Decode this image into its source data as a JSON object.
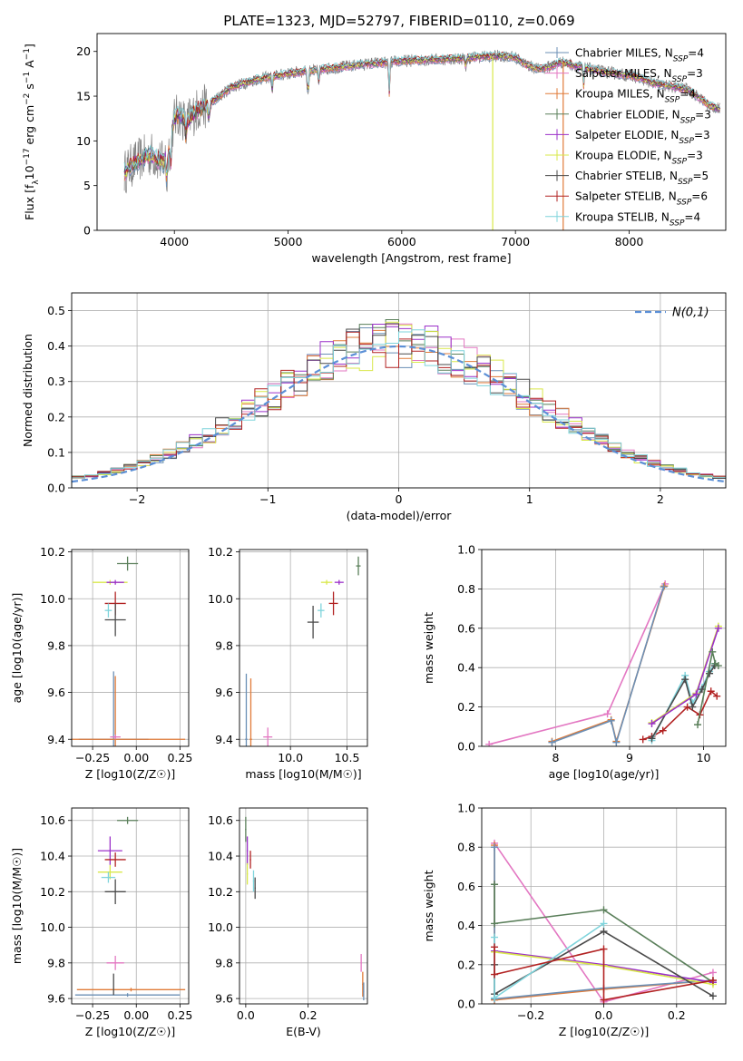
{
  "figure_title": "PLATE=1323, MJD=52797, FIBERID=0110, z=0.069",
  "colors": {
    "chabrier_miles": "#6b8fb5",
    "salpeter_miles": "#e377c2",
    "kroupa_miles": "#e07b39",
    "chabrier_elodie": "#5a7f5a",
    "salpeter_elodie": "#9b30c9",
    "kroupa_elodie": "#d9e84a",
    "chabrier_stelib": "#4a4a4a",
    "salpeter_stelib": "#b22222",
    "kroupa_stelib": "#7fd4dc",
    "data": "#808080",
    "normal_curve": "#5b8fd6"
  },
  "chart_data": [
    {
      "id": "spectrum",
      "type": "line",
      "xlabel": "wavelength [Angstrom, rest frame]",
      "ylabel": "Flux [f_λ10^-17 erg cm^-2 s^-1 A^-1]",
      "xlim": [
        3320,
        8850
      ],
      "ylim": [
        0,
        22
      ],
      "xticks": [
        4000,
        5000,
        6000,
        7000,
        8000
      ],
      "yticks": [
        0,
        5,
        10,
        15,
        20
      ],
      "grid": false,
      "legend_position": "right",
      "legend": [
        {
          "base": "Chabrier MILES, N",
          "sub": "SSP",
          "tail": "=4",
          "color_key": "chabrier_miles"
        },
        {
          "base": "Salpeter MILES, N",
          "sub": "SSP",
          "tail": "=3",
          "color_key": "salpeter_miles"
        },
        {
          "base": "Kroupa MILES, N",
          "sub": "SSP",
          "tail": "=4",
          "color_key": "kroupa_miles"
        },
        {
          "base": "Chabrier ELODIE, N",
          "sub": "SSP",
          "tail": "=3",
          "color_key": "chabrier_elodie"
        },
        {
          "base": "Salpeter ELODIE, N",
          "sub": "SSP",
          "tail": "=3",
          "color_key": "salpeter_elodie"
        },
        {
          "base": "Kroupa ELODIE, N",
          "sub": "SSP",
          "tail": "=3",
          "color_key": "kroupa_elodie"
        },
        {
          "base": "Chabrier STELIB, N",
          "sub": "SSP",
          "tail": "=5",
          "color_key": "chabrier_stelib"
        },
        {
          "base": "Salpeter STELIB, N",
          "sub": "SSP",
          "tail": "=6",
          "color_key": "salpeter_stelib"
        },
        {
          "base": "Kroupa STELIB, N",
          "sub": "SSP",
          "tail": "=4",
          "color_key": "kroupa_stelib"
        }
      ],
      "model_continuum": {
        "x": [
          3560,
          3600,
          3700,
          3800,
          3850,
          3900,
          3950,
          4000,
          4050,
          4100,
          4200,
          4300,
          4400,
          4500,
          4700,
          4900,
          5100,
          5300,
          5500,
          5700,
          5900,
          6100,
          6300,
          6500,
          6700,
          6900,
          7000,
          7100,
          7200,
          7300,
          7400,
          7500,
          7600,
          7700,
          7800,
          7900,
          8000,
          8100,
          8200,
          8300,
          8400,
          8500,
          8600,
          8700,
          8800
        ],
        "y": [
          6.5,
          7.0,
          8.0,
          8.5,
          8.0,
          7.5,
          9.0,
          12.5,
          13.0,
          12.0,
          13.5,
          14.0,
          15.0,
          16.0,
          16.8,
          17.3,
          17.7,
          18.0,
          18.3,
          18.6,
          18.8,
          19.0,
          19.1,
          19.2,
          19.4,
          19.5,
          19.3,
          18.5,
          18.0,
          18.3,
          18.8,
          18.5,
          18.2,
          17.9,
          17.7,
          17.5,
          17.3,
          17.0,
          16.5,
          16.2,
          16.0,
          15.8,
          15.0,
          14.0,
          13.5
        ]
      },
      "absorption_features": [
        {
          "x": 3934,
          "depth": 3.5
        },
        {
          "x": 3969,
          "depth": 3.0
        },
        {
          "x": 4102,
          "depth": 1.5
        },
        {
          "x": 4304,
          "depth": 2.0
        },
        {
          "x": 4861,
          "depth": 1.5
        },
        {
          "x": 5175,
          "depth": 3.0
        },
        {
          "x": 5270,
          "depth": 1.5
        },
        {
          "x": 5890,
          "depth": 3.5
        },
        {
          "x": 6563,
          "depth": 1.0
        },
        {
          "x": 7600,
          "depth": 2.0
        }
      ],
      "vertical_spikes": [
        {
          "x": 6800,
          "to": 0,
          "color_key": "kroupa_elodie"
        },
        {
          "x": 7420,
          "to": 0,
          "color_key": "kroupa_miles"
        }
      ]
    },
    {
      "id": "residual_histogram",
      "type": "histogram",
      "xlabel": "(data-model)/error",
      "ylabel": "Normed distribution",
      "xlim": [
        -2.5,
        2.5
      ],
      "ylim": [
        0,
        0.55
      ],
      "xticks": [
        -2,
        -1,
        0,
        1,
        2
      ],
      "yticks": [
        0.0,
        0.1,
        0.2,
        0.3,
        0.4,
        0.5
      ],
      "grid": true,
      "bins": 50,
      "legend_position": "top-right",
      "legend_label": "N(0,1)",
      "normal_curve": {
        "mean": 0,
        "sigma": 1
      }
    },
    {
      "id": "age_vs_Z",
      "type": "errorbar",
      "xlabel": "Z [log10(Z/Z☉)]",
      "ylabel": "age  [log10(age/yr)]",
      "xlim": [
        -0.37,
        0.3
      ],
      "ylim": [
        9.37,
        10.21
      ],
      "xticks": [
        -0.25,
        0.0,
        0.25
      ],
      "yticks": [
        9.4,
        9.6,
        9.8,
        10.0,
        10.2
      ],
      "grid": true,
      "points": [
        {
          "key": "chabrier_elodie",
          "x": -0.05,
          "xerr": 0.06,
          "y": 10.15,
          "yerr": 0.03
        },
        {
          "key": "kroupa_elodie",
          "x": -0.15,
          "xerr": 0.1,
          "y": 10.07,
          "yerr": 0.01
        },
        {
          "key": "salpeter_elodie",
          "x": -0.12,
          "xerr": 0.05,
          "y": 10.07,
          "yerr": 0.01
        },
        {
          "key": "salpeter_stelib",
          "x": -0.12,
          "xerr": 0.06,
          "y": 9.98,
          "yerr": 0.05
        },
        {
          "key": "kroupa_stelib",
          "x": -0.16,
          "xerr": 0.02,
          "y": 9.95,
          "yerr": 0.03
        },
        {
          "key": "chabrier_stelib",
          "x": -0.12,
          "xerr": 0.06,
          "y": 9.91,
          "yerr": 0.07
        },
        {
          "key": "chabrier_miles",
          "x": -0.13,
          "xerr": 0.2,
          "y": 9.4,
          "yerr": 0.29
        },
        {
          "key": "kroupa_miles",
          "x": -0.12,
          "xerr": 0.4,
          "y": 9.4,
          "yerr": 0.27
        },
        {
          "key": "salpeter_miles",
          "x": -0.12,
          "xerr": 0.03,
          "y": 9.41,
          "yerr": 0.01
        }
      ]
    },
    {
      "id": "age_vs_mass",
      "type": "errorbar",
      "xlabel": "mass [log10(M/M☉)]",
      "xlim": [
        9.55,
        10.68
      ],
      "ylim": [
        9.37,
        10.21
      ],
      "xticks": [
        10.0,
        10.5
      ],
      "yticks": [
        9.4,
        9.6,
        9.8,
        10.0,
        10.2
      ],
      "grid": true,
      "points": [
        {
          "key": "chabrier_elodie",
          "x": 10.6,
          "xerr": 0.02,
          "y": 10.14,
          "yerr": 0.04
        },
        {
          "key": "kroupa_elodie",
          "x": 10.32,
          "xerr": 0.05,
          "y": 10.07,
          "yerr": 0.01
        },
        {
          "key": "salpeter_elodie",
          "x": 10.43,
          "xerr": 0.04,
          "y": 10.07,
          "yerr": 0.01
        },
        {
          "key": "salpeter_stelib",
          "x": 10.38,
          "xerr": 0.04,
          "y": 9.98,
          "yerr": 0.05
        },
        {
          "key": "kroupa_stelib",
          "x": 10.27,
          "xerr": 0.03,
          "y": 9.95,
          "yerr": 0.03
        },
        {
          "key": "chabrier_stelib",
          "x": 10.2,
          "xerr": 0.05,
          "y": 9.9,
          "yerr": 0.07
        },
        {
          "key": "chabrier_miles",
          "x": 9.61,
          "xerr": 0.01,
          "y": 9.4,
          "yerr": 0.28
        },
        {
          "key": "kroupa_miles",
          "x": 9.65,
          "xerr": 0.01,
          "y": 9.4,
          "yerr": 0.26
        },
        {
          "key": "salpeter_miles",
          "x": 9.8,
          "xerr": 0.04,
          "y": 9.41,
          "yerr": 0.04
        }
      ]
    },
    {
      "id": "weight_vs_age",
      "type": "line",
      "xlabel": "age  [log10(age/yr)]",
      "ylabel": "mass weight",
      "xlim": [
        7.0,
        10.3
      ],
      "ylim": [
        0,
        1
      ],
      "xticks": [
        8,
        9,
        10
      ],
      "yticks": [
        0.0,
        0.2,
        0.4,
        0.6,
        0.8,
        1.0
      ],
      "grid": true,
      "series": [
        {
          "key": "salpeter_miles",
          "x": [
            7.1,
            8.7,
            9.48
          ],
          "y": [
            0.01,
            0.165,
            0.825
          ]
        },
        {
          "key": "kroupa_miles",
          "x": [
            7.95,
            8.75,
            8.82,
            9.47
          ],
          "y": [
            0.025,
            0.135,
            0.025,
            0.815
          ]
        },
        {
          "key": "chabrier_miles",
          "x": [
            7.95,
            8.75,
            8.82,
            9.46
          ],
          "y": [
            0.02,
            0.13,
            0.02,
            0.81
          ]
        },
        {
          "key": "salpeter_stelib",
          "x": [
            9.18,
            9.3,
            9.45,
            9.78,
            9.95,
            10.1,
            10.18
          ],
          "y": [
            0.035,
            0.05,
            0.08,
            0.2,
            0.16,
            0.28,
            0.255
          ]
        },
        {
          "key": "kroupa_stelib",
          "x": [
            9.3,
            9.75,
            9.85,
            9.98,
            10.08,
            10.15
          ],
          "y": [
            0.03,
            0.36,
            0.22,
            0.3,
            0.38,
            0.42
          ]
        },
        {
          "key": "chabrier_stelib",
          "x": [
            9.3,
            9.75,
            9.85,
            9.98,
            10.08,
            10.15
          ],
          "y": [
            0.04,
            0.34,
            0.2,
            0.29,
            0.37,
            0.41
          ]
        },
        {
          "key": "kroupa_elodie",
          "x": [
            9.3,
            9.9,
            10.2
          ],
          "y": [
            0.12,
            0.27,
            0.61
          ]
        },
        {
          "key": "salpeter_elodie",
          "x": [
            9.3,
            9.9,
            10.2
          ],
          "y": [
            0.115,
            0.265,
            0.6
          ]
        },
        {
          "key": "chabrier_elodie",
          "x": [
            9.92,
            10.12,
            10.16,
            10.2
          ],
          "y": [
            0.11,
            0.48,
            0.42,
            0.41
          ]
        }
      ]
    },
    {
      "id": "mass_vs_Z",
      "type": "errorbar",
      "xlabel": "Z [log10(Z/Z☉)]",
      "ylabel": "mass [log10(M/M☉)]",
      "xlim": [
        -0.37,
        0.3
      ],
      "ylim": [
        9.57,
        10.67
      ],
      "xticks": [
        -0.25,
        0.0,
        0.25
      ],
      "yticks": [
        9.6,
        9.8,
        10.0,
        10.2,
        10.4,
        10.6
      ],
      "grid": true,
      "points": [
        {
          "key": "chabrier_elodie",
          "x": -0.05,
          "xerr": 0.06,
          "y": 10.6,
          "yerr": 0.02
        },
        {
          "key": "salpeter_elodie",
          "x": -0.15,
          "xerr": 0.07,
          "y": 10.43,
          "yerr": 0.08
        },
        {
          "key": "salpeter_stelib",
          "x": -0.12,
          "xerr": 0.06,
          "y": 10.38,
          "yerr": 0.04
        },
        {
          "key": "kroupa_elodie",
          "x": -0.15,
          "xerr": 0.07,
          "y": 10.31,
          "yerr": 0.04
        },
        {
          "key": "kroupa_stelib",
          "x": -0.16,
          "xerr": 0.04,
          "y": 10.28,
          "yerr": 0.03
        },
        {
          "key": "chabrier_stelib",
          "x": -0.12,
          "xerr": 0.06,
          "y": 10.2,
          "yerr": 0.07
        },
        {
          "key": "salpeter_miles",
          "x": -0.12,
          "xerr": 0.05,
          "y": 9.8,
          "yerr": 0.04
        },
        {
          "key": "kroupa_miles",
          "x": -0.03,
          "xerr": 0.31,
          "y": 9.65,
          "yerr": 0.01
        },
        {
          "key": "chabrier_miles",
          "x": -0.05,
          "xerr": 0.3,
          "y": 9.62,
          "yerr": 0.01
        },
        {
          "key": "chabrier_stelib",
          "x": -0.13,
          "xerr": 0.001,
          "y": 9.68,
          "yerr": 0.06
        }
      ]
    },
    {
      "id": "mass_vs_ebv",
      "type": "errorbar",
      "xlabel": "E(B-V)",
      "xlim": [
        -0.02,
        0.39
      ],
      "ylim": [
        9.57,
        10.67
      ],
      "xticks": [
        0.0,
        0.2
      ],
      "yticks": [
        9.6,
        9.8,
        10.0,
        10.2,
        10.4,
        10.6
      ],
      "grid": true,
      "points": [
        {
          "key": "chabrier_elodie",
          "x": 0.0,
          "xerr": 0.002,
          "y": 10.55,
          "yerr": 0.07
        },
        {
          "key": "salpeter_elodie",
          "x": 0.005,
          "xerr": 0.002,
          "y": 10.43,
          "yerr": 0.08
        },
        {
          "key": "salpeter_stelib",
          "x": 0.015,
          "xerr": 0.002,
          "y": 10.38,
          "yerr": 0.05
        },
        {
          "key": "kroupa_elodie",
          "x": 0.005,
          "xerr": 0.002,
          "y": 10.3,
          "yerr": 0.06
        },
        {
          "key": "kroupa_stelib",
          "x": 0.025,
          "xerr": 0.002,
          "y": 10.26,
          "yerr": 0.06
        },
        {
          "key": "chabrier_stelib",
          "x": 0.03,
          "xerr": 0.002,
          "y": 10.22,
          "yerr": 0.06
        },
        {
          "key": "salpeter_miles",
          "x": 0.37,
          "xerr": 0.002,
          "y": 9.8,
          "yerr": 0.05
        },
        {
          "key": "kroupa_miles",
          "x": 0.375,
          "xerr": 0.002,
          "y": 9.68,
          "yerr": 0.07
        },
        {
          "key": "chabrier_miles",
          "x": 0.378,
          "xerr": 0.002,
          "y": 9.64,
          "yerr": 0.05
        }
      ]
    },
    {
      "id": "weight_vs_Z",
      "type": "line",
      "xlabel": "Z [log10(Z/Z☉)]",
      "ylabel": "mass weight",
      "xlim": [
        -0.335,
        0.335
      ],
      "ylim": [
        0,
        1
      ],
      "xticks": [
        -0.2,
        0.0,
        0.2
      ],
      "yticks": [
        0.0,
        0.2,
        0.4,
        0.6,
        0.8,
        1.0
      ],
      "grid": true,
      "series": [
        {
          "key": "salpeter_miles",
          "x": [
            -0.3,
            0.0,
            0.3
          ],
          "y": [
            0.82,
            0.01,
            0.16
          ]
        },
        {
          "key": "kroupa_miles",
          "x": [
            -0.3,
            -0.3,
            0.0,
            0.3
          ],
          "y": [
            0.81,
            0.02,
            0.075,
            0.12
          ]
        },
        {
          "key": "chabrier_miles",
          "x": [
            -0.3,
            -0.3,
            0.0,
            0.3
          ],
          "y": [
            0.8,
            0.025,
            0.08,
            0.12
          ]
        },
        {
          "key": "chabrier_elodie",
          "x": [
            -0.3,
            -0.3,
            0.0,
            0.3
          ],
          "y": [
            0.61,
            0.41,
            0.48,
            0.11
          ]
        },
        {
          "key": "salpeter_elodie",
          "x": [
            -0.3,
            0.0,
            0.3
          ],
          "y": [
            0.27,
            0.2,
            0.11
          ]
        },
        {
          "key": "kroupa_elodie",
          "x": [
            -0.3,
            0.0,
            0.3
          ],
          "y": [
            0.265,
            0.195,
            0.1
          ]
        },
        {
          "key": "chabrier_stelib",
          "x": [
            -0.3,
            -0.3,
            0.0,
            0.3
          ],
          "y": [
            0.2,
            0.05,
            0.37,
            0.04
          ]
        },
        {
          "key": "kroupa_stelib",
          "x": [
            -0.3,
            -0.3,
            0.0
          ],
          "y": [
            0.34,
            0.03,
            0.41
          ]
        },
        {
          "key": "salpeter_stelib",
          "x": [
            -0.3,
            -0.3,
            0.0,
            0.0,
            0.3
          ],
          "y": [
            0.29,
            0.15,
            0.28,
            0.02,
            0.12
          ]
        }
      ]
    }
  ]
}
